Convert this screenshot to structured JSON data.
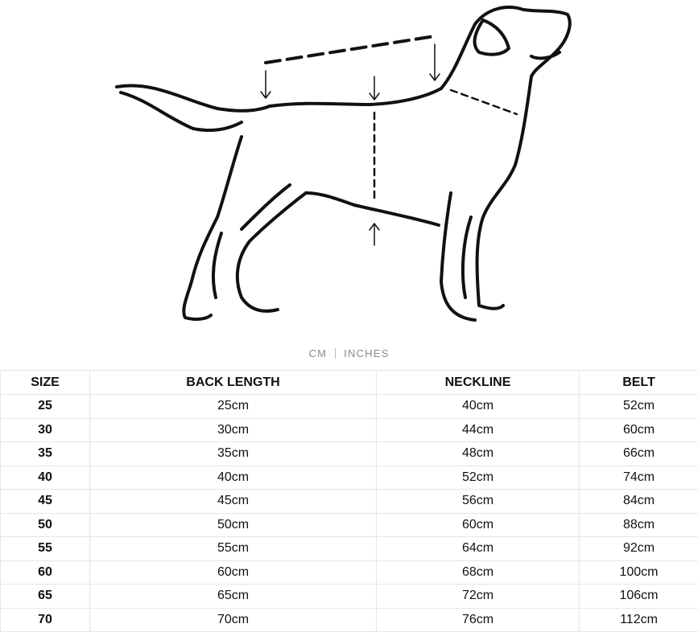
{
  "illustration": {
    "icon": "dog-measurement-diagram-icon"
  },
  "units": {
    "options": [
      "CM",
      "INCHES"
    ],
    "selected": "CM"
  },
  "table": {
    "headers": [
      "SIZE",
      "BACK LENGTH",
      "NECKLINE",
      "BELT"
    ],
    "rows": [
      [
        "25",
        "25cm",
        "40cm",
        "52cm"
      ],
      [
        "30",
        "30cm",
        "44cm",
        "60cm"
      ],
      [
        "35",
        "35cm",
        "48cm",
        "66cm"
      ],
      [
        "40",
        "40cm",
        "52cm",
        "74cm"
      ],
      [
        "45",
        "45cm",
        "56cm",
        "84cm"
      ],
      [
        "50",
        "50cm",
        "60cm",
        "88cm"
      ],
      [
        "55",
        "55cm",
        "64cm",
        "92cm"
      ],
      [
        "60",
        "60cm",
        "68cm",
        "100cm"
      ],
      [
        "65",
        "65cm",
        "72cm",
        "106cm"
      ],
      [
        "70",
        "70cm",
        "76cm",
        "112cm"
      ]
    ]
  }
}
